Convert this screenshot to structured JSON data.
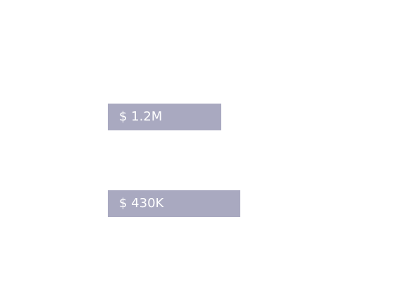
{
  "badges": [
    {
      "label": "$ 1.2M"
    },
    {
      "label": "$ 430K"
    }
  ]
}
